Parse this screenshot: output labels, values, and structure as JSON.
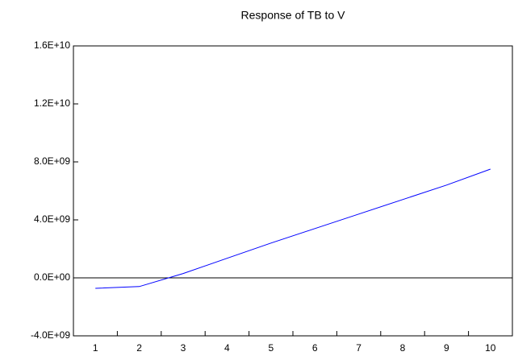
{
  "chart_data": {
    "type": "line",
    "title": "Response of TB to V",
    "categories": [
      "1",
      "2",
      "3",
      "4",
      "5",
      "6",
      "7",
      "8",
      "9",
      "10"
    ],
    "series": [
      {
        "color": "#0000ff",
        "values": [
          -720000000,
          -600000000,
          300000000,
          1350000000,
          2400000000,
          3400000000,
          4400000000,
          5400000000,
          6400000000,
          7500000000
        ]
      }
    ],
    "ylim": [
      -4000000000,
      16000000000
    ],
    "yticks": [
      {
        "value": -4000000000,
        "label": "-4.0E+09"
      },
      {
        "value": 0,
        "label": "0.0E+00"
      },
      {
        "value": 4000000000,
        "label": "4.0E+09"
      },
      {
        "value": 8000000000,
        "label": "8.0E+09"
      },
      {
        "value": 12000000000,
        "label": "1.2E+10"
      },
      {
        "value": 16000000000,
        "label": "1.6E+10"
      }
    ],
    "grid": false
  }
}
